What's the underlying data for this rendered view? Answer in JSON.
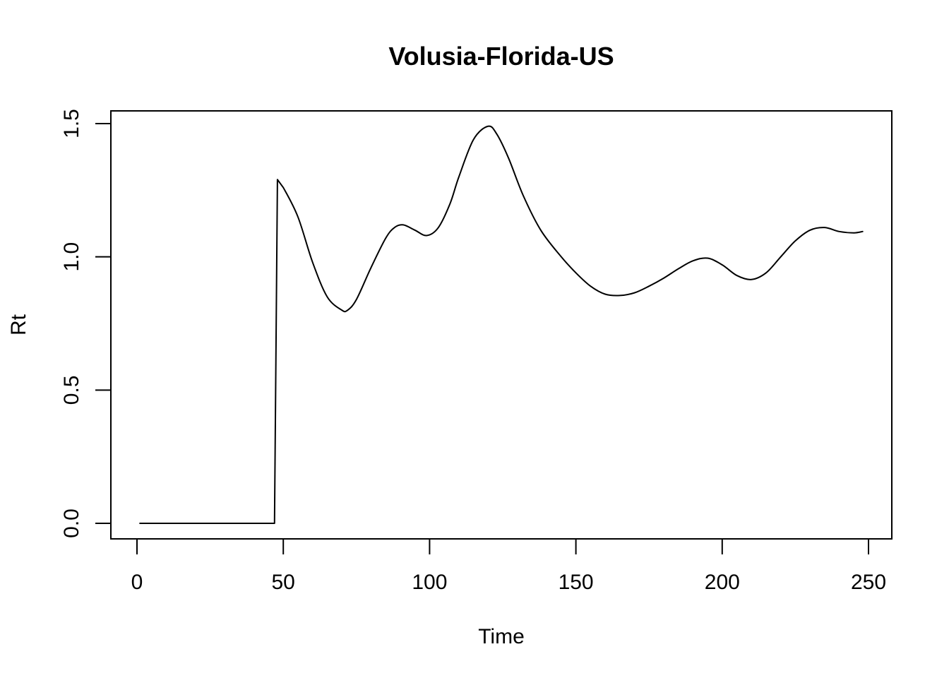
{
  "chart_data": {
    "type": "line",
    "title": "Volusia-Florida-US",
    "xlabel": "Time",
    "ylabel": "Rt",
    "xlim": [
      0,
      250
    ],
    "ylim": [
      0,
      1.5
    ],
    "x_ticks": [
      0,
      50,
      100,
      150,
      200,
      250
    ],
    "y_ticks": [
      0.0,
      0.5,
      1.0,
      1.5
    ],
    "x_tick_labels": [
      "0",
      "50",
      "100",
      "150",
      "200",
      "250"
    ],
    "y_tick_labels": [
      "0.0",
      "0.5",
      "1.0",
      "1.5"
    ],
    "grid": false,
    "series": [
      {
        "x": [
          1,
          10,
          20,
          30,
          40,
          47,
          48,
          50,
          55,
          60,
          65,
          70,
          72,
          75,
          80,
          85,
          88,
          91,
          95,
          99,
          103,
          107,
          110,
          115,
          120,
          123,
          127,
          132,
          138,
          145,
          150,
          155,
          160,
          165,
          170,
          175,
          180,
          185,
          190,
          195,
          200,
          205,
          210,
          215,
          220,
          225,
          230,
          235,
          240,
          245,
          248
        ],
        "y": [
          0,
          0,
          0,
          0,
          0,
          0,
          1.29,
          1.26,
          1.15,
          0.98,
          0.85,
          0.8,
          0.8,
          0.84,
          0.96,
          1.07,
          1.11,
          1.12,
          1.1,
          1.08,
          1.11,
          1.2,
          1.3,
          1.44,
          1.49,
          1.46,
          1.37,
          1.23,
          1.1,
          1.0,
          0.94,
          0.89,
          0.86,
          0.855,
          0.865,
          0.89,
          0.92,
          0.955,
          0.985,
          0.995,
          0.97,
          0.93,
          0.915,
          0.94,
          1.0,
          1.06,
          1.1,
          1.11,
          1.095,
          1.09,
          1.095
        ]
      }
    ]
  }
}
